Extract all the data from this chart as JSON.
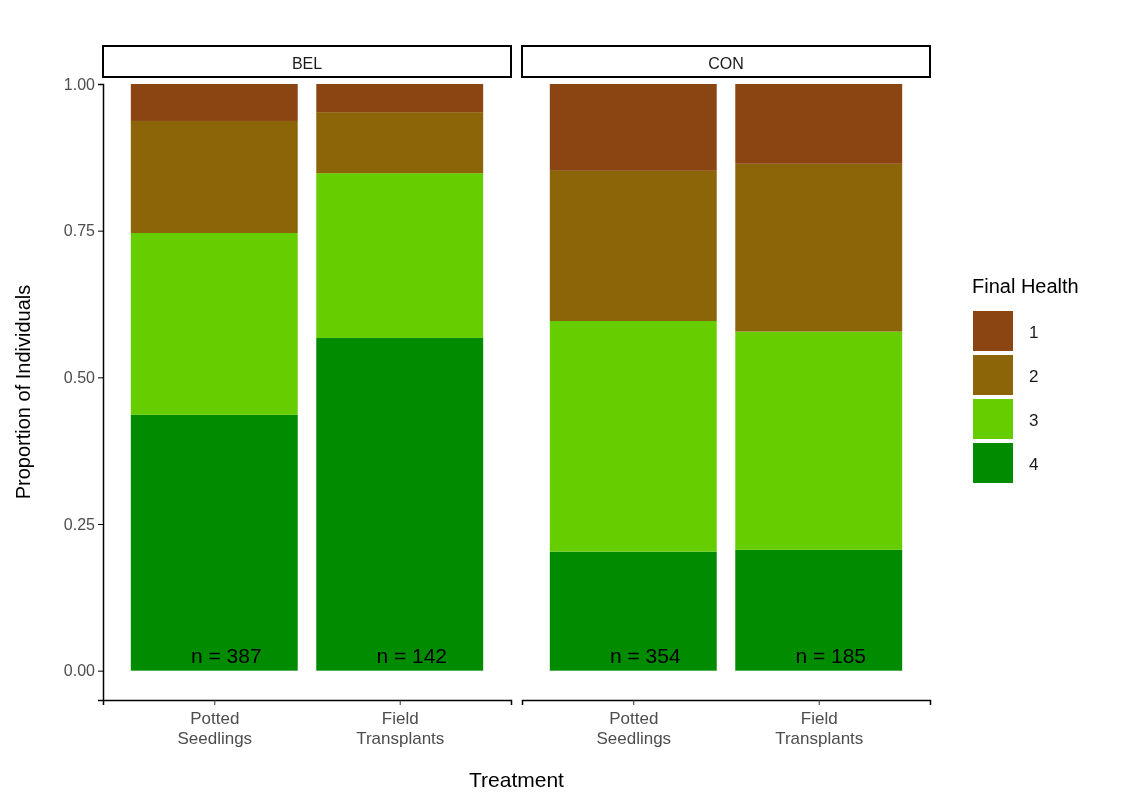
{
  "chart_data": [
    {
      "type": "bar",
      "title": "BEL",
      "ylabel": "Proportion of Individuals",
      "xlabel": "Treatment",
      "stacked": true,
      "categories": [
        "Potted Seedlings",
        "Field Transplants"
      ],
      "ylim": [
        -0.05,
        1
      ],
      "yticks": [
        {
          "value": 0,
          "label": "0.00"
        },
        {
          "value": 0.25,
          "label": "0.25"
        },
        {
          "value": 0.5,
          "label": "0.50"
        },
        {
          "value": 0.75,
          "label": "0.75"
        },
        {
          "value": 1,
          "label": "1.00"
        }
      ],
      "series": [
        {
          "color": "#008b00",
          "values": [
            0.436,
            0.567
          ]
        },
        {
          "color": "#66cd00",
          "values": [
            0.31,
            0.281
          ]
        },
        {
          "color": "#8b6508",
          "values": [
            0.191,
            0.104
          ]
        },
        {
          "color": "#8b4513",
          "values": [
            0.063,
            0.048
          ]
        }
      ],
      "annotations": [
        "n = 387",
        "n = 142"
      ]
    },
    {
      "type": "bar",
      "title": "CON",
      "stacked": true,
      "categories": [
        "Potted Seedlings",
        "Field Transplants"
      ],
      "ylim": [
        -0.05,
        1
      ],
      "tick_labels": "x",
      "legend": "right",
      "legend_title": "Final Health",
      "series": [
        {
          "name": "4",
          "color": "#008b00",
          "values": [
            0.203,
            0.206
          ]
        },
        {
          "name": "3",
          "color": "#66cd00",
          "values": [
            0.393,
            0.372
          ]
        },
        {
          "name": "2",
          "color": "#8b6508",
          "values": [
            0.256,
            0.286
          ]
        },
        {
          "name": "1",
          "color": "#8b4513",
          "values": [
            0.148,
            0.136
          ]
        }
      ],
      "annotations": [
        "n = 354",
        "n = 185"
      ]
    }
  ]
}
